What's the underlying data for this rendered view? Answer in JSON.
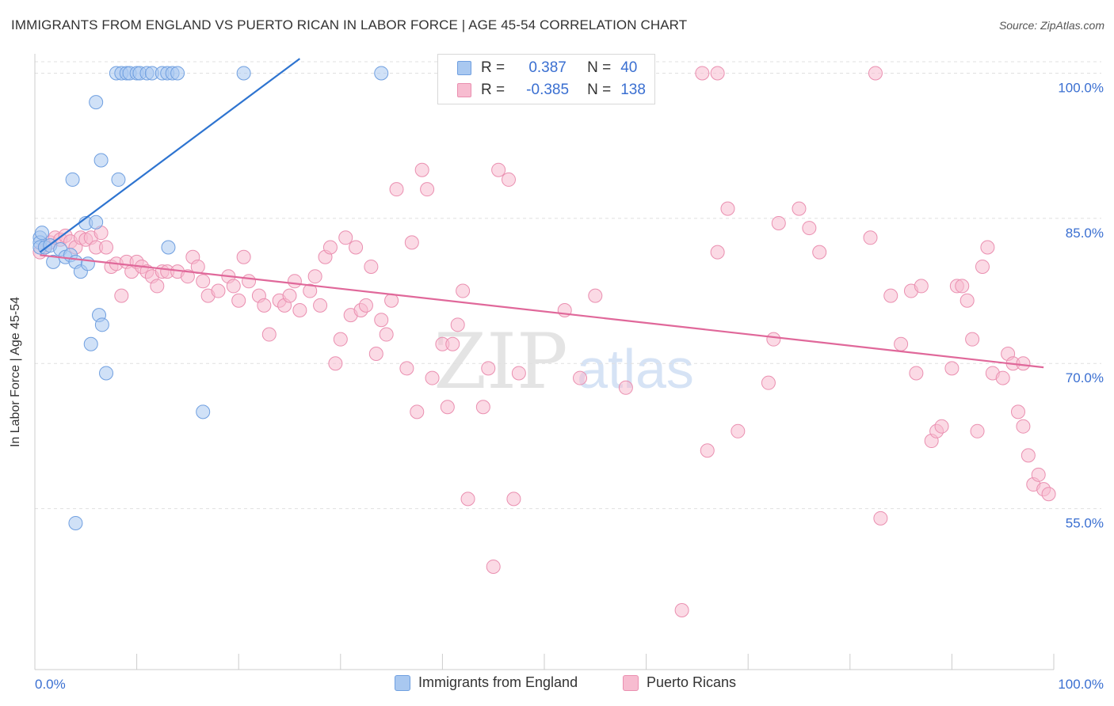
{
  "title": "IMMIGRANTS FROM ENGLAND VS PUERTO RICAN IN LABOR FORCE | AGE 45-54 CORRELATION CHART",
  "source": "Source: ZipAtlas.com",
  "watermark": {
    "zip": "ZIP",
    "atlas": "atlas"
  },
  "legend": {
    "rows": [
      {
        "r_label": "R =",
        "r_value": "0.387",
        "n_label": "N =",
        "n_value": "40"
      },
      {
        "r_label": "R =",
        "r_value": "-0.385",
        "n_label": "N =",
        "n_value": "138"
      }
    ]
  },
  "bottom_legend": {
    "series1": "Immigrants from England",
    "series2": "Puerto Ricans"
  },
  "colors": {
    "blue_fill": "#a9c8f0",
    "blue_stroke": "#6f9fe0",
    "blue_line": "#2e74d0",
    "pink_fill": "#f7bcd0",
    "pink_stroke": "#ea8fb0",
    "pink_line": "#e0689a",
    "axis_text": "#3a6fd1",
    "grid": "#e0e0e0"
  },
  "chart_data": {
    "type": "scatter",
    "xlabel": "",
    "ylabel": "In Labor Force | Age 45-54",
    "xlim": [
      0,
      100
    ],
    "ylim": [
      40,
      102
    ],
    "x_tick_labels": [
      "0.0%",
      "100.0%"
    ],
    "y_tick_labels": [
      "100.0%",
      "85.0%",
      "70.0%",
      "55.0%"
    ],
    "y_tick_values": [
      100,
      85,
      70,
      55
    ],
    "grid": "dashed horizontal",
    "series": [
      {
        "name": "Immigrants from England",
        "trend": {
          "x": [
            0.5,
            26
          ],
          "y": [
            81.5,
            101.5
          ]
        },
        "points": [
          [
            0.5,
            83
          ],
          [
            0.5,
            82.5
          ],
          [
            0.5,
            82
          ],
          [
            0.7,
            83.5
          ],
          [
            1,
            82
          ],
          [
            1.5,
            82.2
          ],
          [
            1.8,
            80.5
          ],
          [
            2.5,
            81.8
          ],
          [
            3,
            81
          ],
          [
            3.5,
            81.2
          ],
          [
            4,
            80.5
          ],
          [
            4.5,
            79.5
          ],
          [
            5,
            84.5
          ],
          [
            5.2,
            80.3
          ],
          [
            6,
            84.6
          ],
          [
            6.3,
            75
          ],
          [
            6.6,
            74
          ],
          [
            5.5,
            72
          ],
          [
            7,
            69
          ],
          [
            8,
            100
          ],
          [
            8.5,
            100
          ],
          [
            9,
            100
          ],
          [
            9.3,
            100
          ],
          [
            10,
            100
          ],
          [
            10.3,
            100
          ],
          [
            11,
            100
          ],
          [
            11.5,
            100
          ],
          [
            12.5,
            100
          ],
          [
            13,
            100
          ],
          [
            13.5,
            100
          ],
          [
            14,
            100
          ],
          [
            16.5,
            65
          ],
          [
            6,
            97
          ],
          [
            6.5,
            91
          ],
          [
            3.7,
            89
          ],
          [
            8.2,
            89
          ],
          [
            13.1,
            82
          ],
          [
            20.5,
            100
          ],
          [
            34,
            100
          ],
          [
            4,
            53.5
          ]
        ]
      },
      {
        "name": "Puerto Ricans",
        "trend": {
          "x": [
            0.5,
            99
          ],
          "y": [
            81.2,
            69.6
          ]
        },
        "points": [
          [
            0.5,
            81.5
          ],
          [
            1,
            82
          ],
          [
            1.5,
            82.5
          ],
          [
            2,
            83
          ],
          [
            2.5,
            82.8
          ],
          [
            3,
            83.2
          ],
          [
            3.5,
            82.6
          ],
          [
            4,
            82
          ],
          [
            4.5,
            83
          ],
          [
            5,
            82.8
          ],
          [
            5.5,
            83
          ],
          [
            6,
            82
          ],
          [
            6.5,
            83.5
          ],
          [
            7,
            82
          ],
          [
            7.5,
            80
          ],
          [
            8,
            80.3
          ],
          [
            8.5,
            77
          ],
          [
            9,
            80.5
          ],
          [
            9.5,
            79.5
          ],
          [
            10,
            80.5
          ],
          [
            10.5,
            80
          ],
          [
            11,
            79.5
          ],
          [
            11.5,
            79
          ],
          [
            12,
            78
          ],
          [
            12.5,
            79.5
          ],
          [
            13,
            79.5
          ],
          [
            14,
            79.5
          ],
          [
            15,
            79
          ],
          [
            15.5,
            81
          ],
          [
            16,
            80
          ],
          [
            16.5,
            78.5
          ],
          [
            17,
            77
          ],
          [
            18,
            77.5
          ],
          [
            19,
            79
          ],
          [
            19.5,
            78
          ],
          [
            20,
            76.5
          ],
          [
            20.5,
            81
          ],
          [
            21,
            78.5
          ],
          [
            22,
            77
          ],
          [
            22.5,
            76
          ],
          [
            23,
            73
          ],
          [
            24,
            76.5
          ],
          [
            24.5,
            76
          ],
          [
            25,
            77
          ],
          [
            25.5,
            78.5
          ],
          [
            26,
            75.5
          ],
          [
            27,
            77.5
          ],
          [
            27.5,
            79
          ],
          [
            28,
            76
          ],
          [
            28.5,
            81
          ],
          [
            29,
            82
          ],
          [
            29.5,
            70
          ],
          [
            30,
            72.5
          ],
          [
            30.5,
            83
          ],
          [
            31,
            75
          ],
          [
            31.5,
            82
          ],
          [
            32,
            75.5
          ],
          [
            32.5,
            76
          ],
          [
            33,
            80
          ],
          [
            33.5,
            71
          ],
          [
            34,
            74.5
          ],
          [
            34.5,
            73
          ],
          [
            35,
            76.5
          ],
          [
            35.5,
            88
          ],
          [
            36.5,
            69.5
          ],
          [
            37,
            82.5
          ],
          [
            37.5,
            65
          ],
          [
            38,
            90
          ],
          [
            38.5,
            88
          ],
          [
            39,
            68.5
          ],
          [
            40,
            72
          ],
          [
            40.5,
            65.5
          ],
          [
            41,
            72
          ],
          [
            41.5,
            74
          ],
          [
            42,
            77.5
          ],
          [
            42.5,
            56
          ],
          [
            44,
            65.5
          ],
          [
            44.5,
            69.5
          ],
          [
            45,
            49
          ],
          [
            45.5,
            90
          ],
          [
            46.5,
            89
          ],
          [
            47,
            56
          ],
          [
            47.5,
            69
          ],
          [
            50,
            100
          ],
          [
            52,
            75.5
          ],
          [
            53.5,
            68.5
          ],
          [
            55,
            77
          ],
          [
            58,
            67.5
          ],
          [
            60,
            100
          ],
          [
            65.5,
            100
          ],
          [
            66,
            61
          ],
          [
            67,
            100
          ],
          [
            67,
            81.5
          ],
          [
            68,
            86
          ],
          [
            69,
            63
          ],
          [
            72,
            68
          ],
          [
            72.5,
            72.5
          ],
          [
            73,
            84.5
          ],
          [
            75,
            86
          ],
          [
            76,
            84
          ],
          [
            77,
            81.5
          ],
          [
            82,
            83
          ],
          [
            82.5,
            100
          ],
          [
            83,
            54
          ],
          [
            84,
            77
          ],
          [
            85,
            72
          ],
          [
            86,
            77.5
          ],
          [
            86.5,
            69
          ],
          [
            87,
            78
          ],
          [
            88,
            62
          ],
          [
            88.5,
            63
          ],
          [
            89,
            63.5
          ],
          [
            90,
            69.5
          ],
          [
            90.5,
            78
          ],
          [
            91,
            78
          ],
          [
            91.5,
            76.5
          ],
          [
            92,
            72.5
          ],
          [
            92.5,
            63
          ],
          [
            93,
            80
          ],
          [
            93.5,
            82
          ],
          [
            94,
            69
          ],
          [
            95,
            68.5
          ],
          [
            95.5,
            71
          ],
          [
            96,
            70
          ],
          [
            96.5,
            65
          ],
          [
            97,
            63.5
          ],
          [
            97.5,
            60.5
          ],
          [
            98,
            57.5
          ],
          [
            98.5,
            58.5
          ],
          [
            99,
            57
          ],
          [
            99.5,
            56.5
          ],
          [
            97,
            70
          ],
          [
            63.5,
            44.5
          ]
        ]
      }
    ]
  },
  "axes_labels": {
    "y_axis_title": "In Labor Force | Age 45-54",
    "x_left": "0.0%",
    "x_right": "100.0%"
  }
}
